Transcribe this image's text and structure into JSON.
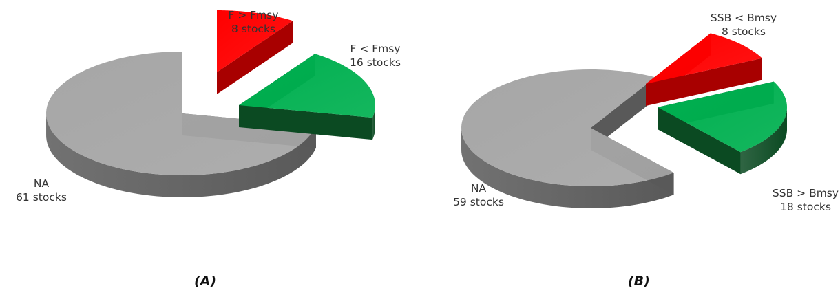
{
  "chart_data": [
    {
      "type": "pie",
      "style": "3d-exploded",
      "caption": "(A)",
      "slices": [
        {
          "category": "F > Fmsy",
          "count_text": "8 stocks",
          "value": 8,
          "color": "#ff0000",
          "side_color": "#a80000",
          "exploded": true
        },
        {
          "category": "F < Fmsy",
          "count_text": "16 stocks",
          "value": 16,
          "color": "#00b050",
          "side_color": "#0b4a22",
          "exploded": true
        },
        {
          "category": "NA",
          "count_text": "61 stocks",
          "value": 61,
          "color": "#a6a6a6",
          "side_color": "#595959",
          "exploded": false
        }
      ]
    },
    {
      "type": "pie",
      "style": "3d-exploded",
      "caption": "(B)",
      "slices": [
        {
          "category": "SSB < Bmsy",
          "count_text": "8 stocks",
          "value": 8,
          "color": "#ff0000",
          "side_color": "#a80000",
          "exploded": true
        },
        {
          "category": "SSB > Bmsy",
          "count_text": "18 stocks",
          "value": 18,
          "color": "#00b050",
          "side_color": "#0b4a22",
          "exploded": true
        },
        {
          "category": "NA",
          "count_text": "59 stocks",
          "value": 59,
          "color": "#a6a6a6",
          "side_color": "#595959",
          "exploded": false
        }
      ]
    }
  ]
}
